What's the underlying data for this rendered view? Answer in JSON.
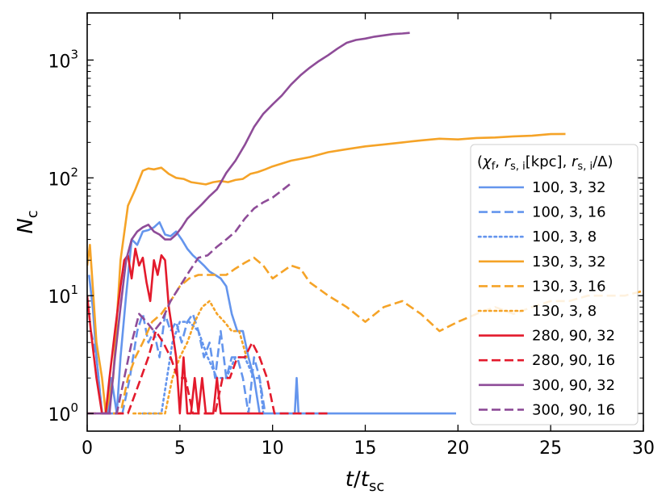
{
  "chart_data": {
    "type": "line",
    "title": "",
    "xlabel": "t/t_sc",
    "ylabel": "N_c",
    "xlim": [
      0,
      30
    ],
    "ylim_log10": [
      -0.15,
      3.4
    ],
    "yscale": "log",
    "grid": false,
    "legend_position": "center-right",
    "legend_title": "(χ_f, r_s,i[kpc], r_s,i/Δ)",
    "x_ticks": [
      0,
      5,
      10,
      15,
      20,
      25,
      30
    ],
    "x_tick_labels": [
      "0",
      "5",
      "10",
      "15",
      "20",
      "25",
      "30"
    ],
    "y_ticks": [
      1,
      10,
      100,
      1000
    ],
    "y_tick_labels": [
      "10^0",
      "10^1",
      "10^2",
      "10^3"
    ],
    "series": [
      {
        "name": "100, 3, 32",
        "color": "#6495ED",
        "dash": "solid",
        "x": [
          0.1,
          0.3,
          0.5,
          0.8,
          1.1,
          1.3,
          1.6,
          1.8,
          2.1,
          2.4,
          2.7,
          3.0,
          3.3,
          3.6,
          3.9,
          4.2,
          4.5,
          4.8,
          5.1,
          5.4,
          5.7,
          6.0,
          6.3,
          6.6,
          6.9,
          7.2,
          7.5,
          7.8,
          8.1,
          8.4,
          8.7,
          9.0,
          9.3,
          9.6,
          10.0,
          11.0,
          11.2,
          11.3,
          11.4,
          12.0,
          14.0,
          17.0,
          19.9
        ],
        "y": [
          15,
          8,
          3,
          1,
          1,
          2,
          1,
          3,
          10,
          30,
          27,
          35,
          36,
          38,
          42,
          33,
          32,
          35,
          30,
          25,
          22,
          20,
          18,
          16,
          15,
          14,
          12,
          7,
          5,
          5,
          3,
          2,
          1,
          1,
          1,
          1,
          1,
          2,
          1,
          1,
          1,
          1,
          1
        ]
      },
      {
        "name": "100, 3, 16",
        "color": "#6495ED",
        "dash": "dashed",
        "x": [
          0.2,
          0.5,
          0.8,
          1.1,
          1.5,
          1.9,
          2.3,
          2.7,
          3.0,
          3.3,
          3.6,
          3.9,
          4.2,
          4.5,
          4.8,
          5.1,
          5.4,
          5.7,
          6.0,
          6.3,
          6.6,
          6.9,
          7.2,
          7.5,
          7.8,
          8.1,
          8.4,
          8.7,
          9.0,
          9.3,
          9.6
        ],
        "y": [
          5,
          3,
          1,
          1,
          1,
          1,
          2,
          5,
          7,
          4,
          5,
          3,
          7,
          5,
          6,
          4,
          6,
          7,
          5,
          3,
          4,
          2,
          5,
          2,
          3,
          3,
          2,
          1,
          3,
          2,
          1
        ]
      },
      {
        "name": "100, 3, 8",
        "color": "#6495ED",
        "dash": "dotted",
        "x": [
          3.0,
          3.5,
          4.0,
          4.3,
          4.6,
          5.0,
          5.5,
          6.0,
          6.5,
          7.0,
          7.5,
          8.0,
          8.5,
          9.0,
          9.3,
          9.5
        ],
        "y": [
          1,
          1,
          1,
          2,
          4,
          6,
          6,
          5,
          3,
          2,
          2,
          3,
          3,
          2,
          2,
          1
        ]
      },
      {
        "name": "130, 3, 32",
        "color": "#F5A327",
        "dash": "solid",
        "x": [
          0,
          0.15,
          0.3,
          0.5,
          0.8,
          1.0,
          1.4,
          1.8,
          2.2,
          2.6,
          3.0,
          3.3,
          3.6,
          4.0,
          4.4,
          4.8,
          5.2,
          5.6,
          6.0,
          6.4,
          6.8,
          7.2,
          7.6,
          8.0,
          8.4,
          8.8,
          9.2,
          9.6,
          10,
          11,
          12,
          13,
          14,
          15,
          16,
          17,
          18,
          19,
          20,
          21,
          22,
          23,
          24,
          25,
          25.8
        ],
        "y": [
          18,
          27,
          12,
          4,
          2,
          1,
          2,
          20,
          58,
          80,
          115,
          120,
          118,
          122,
          108,
          100,
          98,
          92,
          90,
          88,
          92,
          94,
          92,
          96,
          98,
          108,
          112,
          118,
          125,
          140,
          150,
          165,
          175,
          185,
          192,
          200,
          208,
          215,
          212,
          218,
          220,
          225,
          228,
          235,
          236
        ]
      },
      {
        "name": "130, 3, 16",
        "color": "#F5A327",
        "dash": "dashed",
        "x": [
          0,
          0.3,
          0.6,
          1.0,
          1.4,
          1.8,
          2.2,
          2.6,
          3.0,
          3.5,
          4.0,
          4.5,
          5.0,
          5.5,
          6.0,
          6.5,
          7.0,
          7.5,
          8.0,
          8.5,
          9.0,
          9.5,
          10,
          11,
          11.5,
          12,
          13,
          14,
          15,
          16,
          17,
          18,
          19,
          20,
          21,
          22,
          23,
          24,
          25,
          26,
          27,
          28,
          29,
          30
        ],
        "y": [
          1,
          1,
          1,
          1,
          1,
          1,
          2,
          3,
          4,
          6,
          7,
          9,
          12,
          14,
          15,
          15,
          15,
          15,
          17,
          19,
          21,
          18,
          14,
          18,
          17,
          13,
          10,
          8,
          6,
          8,
          9,
          7,
          5,
          6,
          7,
          8,
          7,
          8,
          9,
          9,
          10,
          10,
          10,
          11
        ]
      },
      {
        "name": "130, 3, 8",
        "color": "#F5A327",
        "dash": "dotted",
        "x": [
          2.5,
          3.5,
          4.2,
          4.6,
          5.0,
          5.4,
          5.8,
          6.2,
          6.6,
          7.0,
          7.4,
          7.8,
          8.2,
          8.6
        ],
        "y": [
          1,
          1,
          1,
          2,
          3,
          4,
          6,
          8,
          9,
          7,
          6,
          5,
          5,
          3
        ]
      },
      {
        "name": "280, 90, 32",
        "color": "#E31A2C",
        "dash": "solid",
        "x": [
          0,
          0.2,
          0.5,
          0.8,
          1.0,
          1.2,
          1.5,
          1.8,
          2.0,
          2.2,
          2.4,
          2.6,
          2.8,
          3.0,
          3.2,
          3.4,
          3.6,
          3.8,
          4.0,
          4.2,
          4.4,
          4.6,
          4.8,
          5.0,
          5.2,
          5.4,
          5.6,
          5.8,
          6.0,
          6.2,
          6.4,
          6.6,
          6.8,
          7.0,
          7.2,
          7.4,
          7.6,
          7.8,
          8.0,
          8.5,
          9.0,
          9.3,
          9.5
        ],
        "y": [
          10,
          5,
          2,
          1,
          1,
          2,
          5,
          12,
          20,
          22,
          14,
          25,
          18,
          21,
          13,
          9,
          20,
          15,
          22,
          20,
          8,
          5,
          3,
          1,
          3,
          1,
          1,
          2,
          1,
          2,
          1,
          1,
          1,
          2,
          1,
          1,
          1,
          1,
          1,
          1,
          1,
          1,
          1
        ]
      },
      {
        "name": "280, 90, 16",
        "color": "#E31A2C",
        "dash": "dashed",
        "x": [
          0.8,
          1.5,
          2.2,
          2.9,
          3.3,
          3.7,
          4.1,
          4.5,
          4.9,
          5.3,
          5.7,
          6.1,
          6.5,
          6.9,
          7.3,
          7.7,
          8.1,
          8.5,
          8.9,
          9.3,
          9.7,
          10.1,
          10.5,
          11.0,
          11.5,
          12.5,
          13.0
        ],
        "y": [
          1,
          1,
          1,
          2,
          3,
          5,
          4,
          3,
          2,
          2,
          1,
          1,
          1,
          1,
          2,
          2,
          3,
          3,
          4,
          3,
          2,
          1,
          1,
          1,
          1,
          1,
          1
        ]
      },
      {
        "name": "300, 90, 32",
        "color": "#8E4C98",
        "dash": "solid",
        "x": [
          0,
          0.2,
          0.4,
          0.6,
          0.8,
          1.0,
          1.2,
          1.5,
          1.8,
          2.1,
          2.4,
          2.7,
          3.0,
          3.3,
          3.6,
          3.9,
          4.2,
          4.5,
          4.8,
          5.1,
          5.4,
          5.8,
          6.2,
          6.6,
          7.0,
          7.5,
          8.0,
          8.5,
          9.0,
          9.5,
          10,
          10.5,
          11,
          11.5,
          12,
          12.5,
          13,
          13.5,
          14,
          14.5,
          15,
          15.5,
          16,
          16.5,
          17,
          17.4
        ],
        "y": [
          1,
          1,
          1,
          1,
          1,
          1,
          1,
          3,
          8,
          20,
          30,
          35,
          38,
          40,
          35,
          33,
          30,
          30,
          33,
          38,
          45,
          52,
          60,
          70,
          80,
          110,
          140,
          190,
          270,
          350,
          420,
          500,
          620,
          740,
          860,
          980,
          1100,
          1250,
          1400,
          1480,
          1520,
          1580,
          1620,
          1660,
          1680,
          1700
        ]
      },
      {
        "name": "300, 90, 16",
        "color": "#8E4C98",
        "dash": "dashed",
        "x": [
          0.8,
          1.2,
          1.6,
          2.0,
          2.4,
          2.8,
          3.2,
          3.6,
          4.0,
          4.5,
          5.0,
          5.5,
          6.0,
          6.5,
          7.0,
          7.5,
          8.0,
          8.5,
          9.0,
          9.5,
          10.0,
          10.5,
          11.0
        ],
        "y": [
          1,
          1,
          1,
          2,
          4,
          7,
          6,
          5,
          6,
          9,
          12,
          16,
          21,
          22,
          26,
          30,
          35,
          45,
          55,
          62,
          68,
          78,
          90
        ]
      }
    ]
  }
}
